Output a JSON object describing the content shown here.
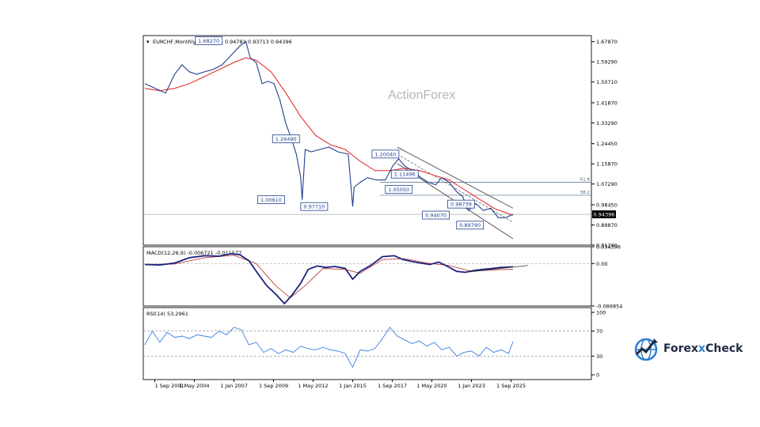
{
  "chart_data": [
    {
      "type": "line",
      "panel": "price",
      "title": "EURCHF,Monthly",
      "ohlc_label": "0.93855 0.94781 0.93713 0.94396",
      "watermark": "ActionForex",
      "x_ticks": [
        "1 Sep 2001",
        "1 May 2004",
        "1 Jan 2007",
        "1 Sep 2009",
        "1 May 2012",
        "1 Jan 2015",
        "1 Sep 2017",
        "1 May 2020",
        "1 Jan 2023",
        "1 Sep 2025"
      ],
      "y_ticks": [
        "1.67870",
        "1.59290",
        "1.50710",
        "1.41870",
        "1.33290",
        "1.24450",
        "1.15870",
        "1.07290",
        "0.98450",
        "0.89870",
        "0.81290"
      ],
      "ylim": [
        0.8129,
        1.7045
      ],
      "current_price": "0.94396",
      "series": [
        {
          "key": "price",
          "x": [
            2001.0,
            2001.7,
            2002.4,
            2003.0,
            2003.5,
            2004.0,
            2004.5,
            2005.0,
            2005.6,
            2006.2,
            2006.8,
            2007.4,
            2007.8,
            2008.1,
            2008.5,
            2008.9,
            2009.3,
            2009.7,
            2010.1,
            2010.5,
            2010.9,
            2011.2,
            2011.5,
            2011.6,
            2011.8,
            2012.2,
            2012.8,
            2013.4,
            2014.0,
            2014.7,
            2015.0,
            2015.1,
            2015.5,
            2016.0,
            2016.6,
            2017.2,
            2017.7,
            2018.1,
            2018.5,
            2019.0,
            2019.6,
            2020.1,
            2020.6,
            2021.0,
            2021.5,
            2022.0,
            2022.4,
            2022.8,
            2023.3,
            2023.8,
            2024.3,
            2024.8,
            2025.3,
            2025.8
          ],
          "values": [
            1.5,
            1.48,
            1.46,
            1.54,
            1.58,
            1.55,
            1.54,
            1.55,
            1.56,
            1.58,
            1.62,
            1.66,
            1.68,
            1.61,
            1.59,
            1.5,
            1.51,
            1.5,
            1.43,
            1.33,
            1.26,
            1.2,
            1.1,
            1.0061,
            1.22,
            1.21,
            1.22,
            1.23,
            1.21,
            1.2,
            0.9771,
            1.06,
            1.08,
            1.1,
            1.09,
            1.09,
            1.15,
            1.18,
            1.15,
            1.13,
            1.1,
            1.08,
            1.07,
            1.1,
            1.08,
            1.04,
            1.02,
            0.96,
            0.99,
            0.96,
            0.97,
            0.93,
            0.93,
            0.94396
          ]
        },
        {
          "key": "moving-average",
          "x": [
            2001.0,
            2002.0,
            2003.0,
            2004.0,
            2005.0,
            2006.0,
            2007.0,
            2007.8,
            2008.5,
            2009.5,
            2010.5,
            2011.5,
            2012.5,
            2013.5,
            2014.5,
            2015.5,
            2016.5,
            2017.5,
            2018.5,
            2019.5,
            2020.5,
            2021.5,
            2022.5,
            2023.5,
            2024.5,
            2025.8
          ],
          "values": [
            1.48,
            1.47,
            1.48,
            1.5,
            1.53,
            1.56,
            1.59,
            1.61,
            1.6,
            1.55,
            1.46,
            1.36,
            1.28,
            1.24,
            1.22,
            1.17,
            1.13,
            1.13,
            1.14,
            1.13,
            1.11,
            1.09,
            1.05,
            1.01,
            0.97,
            0.94
          ]
        }
      ],
      "annotations": [
        "1.68270",
        "1.26490",
        "1.00610",
        "0.97710",
        "1.20040",
        "1.11496",
        "1.05050",
        "0.94070",
        "0.89790",
        "0.98739"
      ],
      "fib_levels": [
        {
          "label": "61.8",
          "value": 1.08
        },
        {
          "label": "38.2",
          "value": 1.025
        }
      ],
      "colors": {
        "price": "#1f3f8f",
        "moving_average": "#e02020",
        "label_box": "#1f3f8f"
      }
    },
    {
      "type": "line",
      "panel": "macd",
      "title": "MACD(12,26,9) -0.006721 -0.011577",
      "y_ticks": [
        "0.034396",
        "0.00",
        "-0.086854"
      ],
      "ylim": [
        -0.086854,
        0.034396
      ],
      "series": [
        {
          "key": "macd",
          "x": [
            2001.0,
            2002.0,
            2003.0,
            2004.0,
            2005.0,
            2006.0,
            2006.8,
            2007.4,
            2008.0,
            2008.6,
            2009.2,
            2009.8,
            2010.4,
            2010.9,
            2011.5,
            2012.0,
            2012.6,
            2013.2,
            2013.8,
            2014.5,
            2015.0,
            2015.5,
            2016.2,
            2017.0,
            2017.8,
            2018.4,
            2019.0,
            2019.6,
            2020.2,
            2020.8,
            2021.4,
            2022.0,
            2022.6,
            2023.2,
            2023.8,
            2024.4,
            2025.0,
            2025.8
          ],
          "values": [
            -0.002,
            -0.003,
            0.001,
            0.012,
            0.016,
            0.015,
            0.02,
            0.018,
            0.006,
            -0.02,
            -0.045,
            -0.062,
            -0.082,
            -0.065,
            -0.04,
            -0.012,
            -0.005,
            -0.008,
            -0.006,
            -0.01,
            -0.032,
            -0.016,
            -0.004,
            0.014,
            0.016,
            0.008,
            0.004,
            0.001,
            -0.002,
            0.003,
            -0.006,
            -0.016,
            -0.018,
            -0.014,
            -0.012,
            -0.01,
            -0.008,
            -0.0067
          ]
        },
        {
          "key": "signal",
          "x": [
            2001.0,
            2003.0,
            2005.0,
            2007.0,
            2008.5,
            2009.8,
            2010.8,
            2011.8,
            2013.0,
            2014.5,
            2015.5,
            2017.0,
            2018.5,
            2020.0,
            2021.5,
            2023.0,
            2024.5,
            2025.8
          ],
          "values": [
            -0.002,
            -0.001,
            0.012,
            0.017,
            0.0,
            -0.045,
            -0.07,
            -0.045,
            -0.01,
            -0.012,
            -0.02,
            0.008,
            0.01,
            0.001,
            -0.004,
            -0.016,
            -0.013,
            -0.0116
          ]
        }
      ],
      "colors": {
        "macd": "#1a237e",
        "signal": "#c04040"
      }
    },
    {
      "type": "line",
      "panel": "rsi",
      "title": "RSI(14) 53.2961",
      "y_ticks": [
        "100",
        "70",
        "30",
        "0"
      ],
      "levels": [
        70,
        30
      ],
      "ylim": [
        0,
        100
      ],
      "series": [
        {
          "key": "rsi",
          "x": [
            2001.0,
            2001.5,
            2002.0,
            2002.5,
            2003.0,
            2003.5,
            2004.0,
            2004.5,
            2005.0,
            2005.5,
            2006.0,
            2006.5,
            2007.0,
            2007.5,
            2008.0,
            2008.5,
            2009.0,
            2009.5,
            2010.0,
            2010.5,
            2011.0,
            2011.5,
            2012.0,
            2012.5,
            2013.0,
            2013.5,
            2014.0,
            2014.5,
            2015.0,
            2015.5,
            2016.0,
            2016.5,
            2017.0,
            2017.5,
            2018.0,
            2018.5,
            2019.0,
            2019.5,
            2020.0,
            2020.5,
            2021.0,
            2021.5,
            2022.0,
            2022.5,
            2023.0,
            2023.5,
            2024.0,
            2024.5,
            2025.0,
            2025.5,
            2025.8
          ],
          "values": [
            48,
            70,
            52,
            68,
            60,
            62,
            58,
            64,
            62,
            60,
            70,
            64,
            76,
            72,
            48,
            52,
            36,
            42,
            34,
            40,
            36,
            46,
            42,
            40,
            44,
            40,
            38,
            34,
            12,
            40,
            38,
            42,
            58,
            76,
            62,
            56,
            50,
            54,
            46,
            52,
            40,
            44,
            30,
            36,
            38,
            30,
            44,
            36,
            40,
            34,
            53.3
          ]
        }
      ],
      "colors": {
        "rsi": "#3a7fe0",
        "level": "#888888"
      }
    }
  ],
  "logo": {
    "text_main": "Forex",
    "text_x": "x",
    "text_end": "Check"
  }
}
